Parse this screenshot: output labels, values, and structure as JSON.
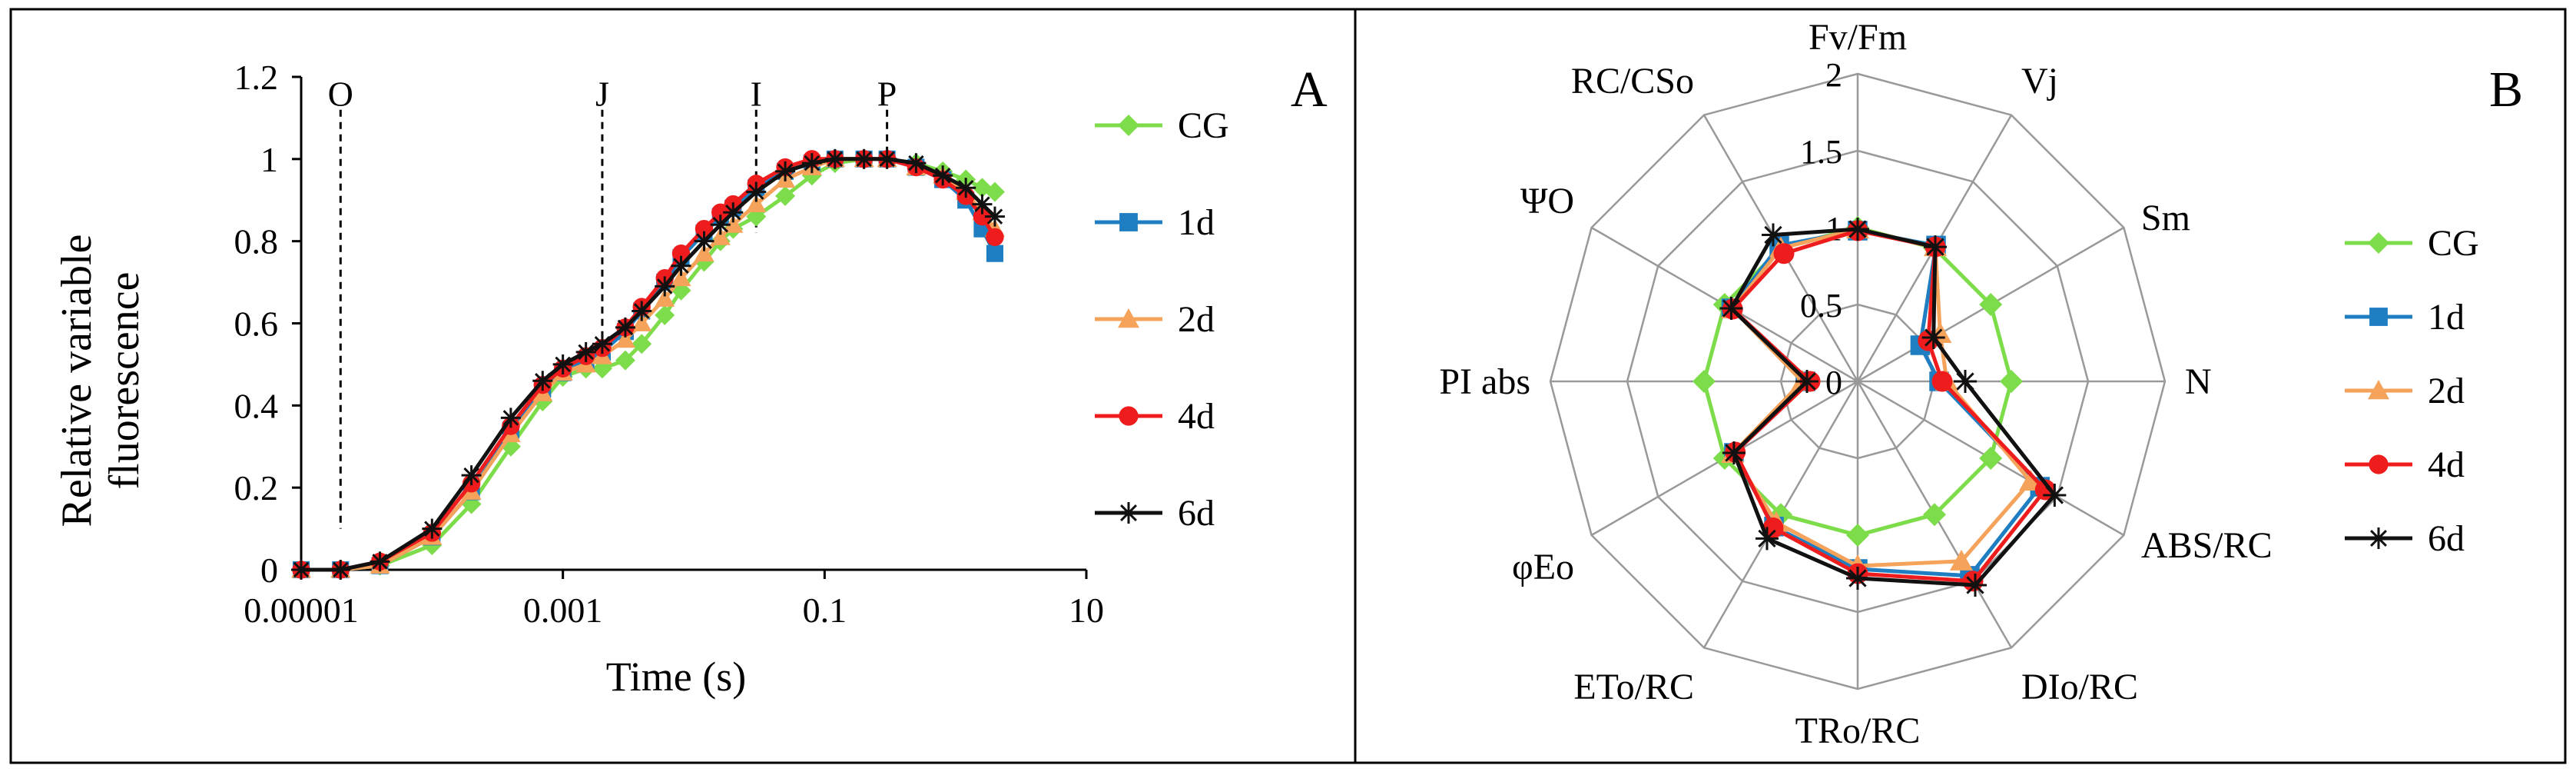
{
  "chart_data": [
    {
      "type": "line",
      "panel_label": "A",
      "xlabel": "Time (s)",
      "ylabel_lines": [
        "Relative variable",
        "fluorescence"
      ],
      "xscale": "log",
      "xlim": [
        1e-05,
        10
      ],
      "ylim": [
        0,
        1.2
      ],
      "x_ticks": [
        1e-05,
        0.001,
        0.1,
        10
      ],
      "x_tick_labels": [
        "0.00001",
        "0.001",
        "0.1",
        "10"
      ],
      "y_ticks": [
        0,
        0.2,
        0.4,
        0.6,
        0.8,
        1,
        1.2
      ],
      "y_tick_labels": [
        "0",
        "0.2",
        "0.4",
        "0.6",
        "0.8",
        "1",
        "1.2"
      ],
      "phase_markers": [
        {
          "label": "O",
          "x": 2e-05
        },
        {
          "label": "J",
          "x": 0.002
        },
        {
          "label": "I",
          "x": 0.03
        },
        {
          "label": "P",
          "x": 0.3
        }
      ],
      "legend_position": "right",
      "series": [
        {
          "name": "CG",
          "color": "#7ddc4a",
          "marker": "diamond",
          "x": [
            1e-05,
            2e-05,
            4e-05,
            0.0001,
            0.0002,
            0.0004,
            0.0007,
            0.001,
            0.0015,
            0.002,
            0.003,
            0.004,
            0.006,
            0.008,
            0.012,
            0.016,
            0.02,
            0.03,
            0.05,
            0.08,
            0.12,
            0.2,
            0.3,
            0.5,
            0.8,
            1.2,
            1.6,
            2
          ],
          "values": [
            0,
            0,
            0.01,
            0.06,
            0.16,
            0.3,
            0.41,
            0.47,
            0.49,
            0.49,
            0.51,
            0.55,
            0.62,
            0.68,
            0.75,
            0.8,
            0.83,
            0.86,
            0.91,
            0.96,
            0.99,
            1.0,
            1.0,
            0.99,
            0.97,
            0.95,
            0.93,
            0.92
          ]
        },
        {
          "name": "1d",
          "color": "#1f7ec2",
          "marker": "square",
          "x": [
            1e-05,
            2e-05,
            4e-05,
            0.0001,
            0.0002,
            0.0004,
            0.0007,
            0.001,
            0.0015,
            0.002,
            0.003,
            0.004,
            0.006,
            0.008,
            0.012,
            0.016,
            0.02,
            0.03,
            0.05,
            0.08,
            0.12,
            0.2,
            0.3,
            0.5,
            0.8,
            1.2,
            1.6,
            2
          ],
          "values": [
            0,
            0,
            0.01,
            0.08,
            0.19,
            0.34,
            0.44,
            0.48,
            0.51,
            0.53,
            0.58,
            0.63,
            0.7,
            0.76,
            0.82,
            0.86,
            0.88,
            0.93,
            0.97,
            0.99,
            1.0,
            1.0,
            1.0,
            0.98,
            0.95,
            0.9,
            0.83,
            0.77
          ]
        },
        {
          "name": "2d",
          "color": "#f5a25a",
          "marker": "triangle",
          "x": [
            1e-05,
            2e-05,
            4e-05,
            0.0001,
            0.0002,
            0.0004,
            0.0007,
            0.001,
            0.0015,
            0.002,
            0.003,
            0.004,
            0.006,
            0.008,
            0.012,
            0.016,
            0.02,
            0.03,
            0.05,
            0.08,
            0.12,
            0.2,
            0.3,
            0.5,
            0.8,
            1.2,
            1.6,
            2
          ],
          "values": [
            0,
            0,
            0.01,
            0.08,
            0.19,
            0.33,
            0.43,
            0.48,
            0.5,
            0.52,
            0.56,
            0.6,
            0.66,
            0.71,
            0.77,
            0.81,
            0.84,
            0.89,
            0.95,
            0.98,
            1.0,
            1.0,
            1.0,
            0.98,
            0.96,
            0.92,
            0.87,
            0.83
          ]
        },
        {
          "name": "4d",
          "color": "#ee1c1c",
          "marker": "circle",
          "x": [
            1e-05,
            2e-05,
            4e-05,
            0.0001,
            0.0002,
            0.0004,
            0.0007,
            0.001,
            0.0015,
            0.002,
            0.003,
            0.004,
            0.006,
            0.008,
            0.012,
            0.016,
            0.02,
            0.03,
            0.05,
            0.08,
            0.12,
            0.2,
            0.3,
            0.5,
            0.8,
            1.2,
            1.6,
            2
          ],
          "values": [
            0,
            0,
            0.02,
            0.09,
            0.21,
            0.35,
            0.45,
            0.49,
            0.52,
            0.54,
            0.59,
            0.64,
            0.71,
            0.77,
            0.83,
            0.87,
            0.89,
            0.94,
            0.98,
            1.0,
            1.0,
            1.0,
            1.0,
            0.98,
            0.95,
            0.91,
            0.86,
            0.81
          ]
        },
        {
          "name": "6d",
          "color": "#111111",
          "marker": "asterisk",
          "x": [
            1e-05,
            2e-05,
            4e-05,
            0.0001,
            0.0002,
            0.0004,
            0.0007,
            0.001,
            0.0015,
            0.002,
            0.003,
            0.004,
            0.006,
            0.008,
            0.012,
            0.016,
            0.02,
            0.03,
            0.05,
            0.08,
            0.12,
            0.2,
            0.3,
            0.5,
            0.8,
            1.2,
            1.6,
            2
          ],
          "values": [
            0,
            0,
            0.02,
            0.1,
            0.23,
            0.37,
            0.46,
            0.5,
            0.53,
            0.55,
            0.59,
            0.63,
            0.69,
            0.74,
            0.8,
            0.84,
            0.87,
            0.92,
            0.97,
            0.99,
            1.0,
            1.0,
            1.0,
            0.99,
            0.96,
            0.93,
            0.89,
            0.86
          ]
        }
      ]
    },
    {
      "type": "radar",
      "panel_label": "B",
      "axes": [
        "Fv/Fm",
        "Vj",
        "Sm",
        "N",
        "ABS/RC",
        "DIo/RC",
        "TRo/RC",
        "ETo/RC",
        "φEo",
        "PI abs",
        "ΨO",
        "RC/CSo"
      ],
      "rlim": [
        0,
        2
      ],
      "r_ticks": [
        0,
        0.5,
        1,
        1.5,
        2
      ],
      "r_tick_labels": [
        "0",
        "0.5",
        "1",
        "1.5",
        "2"
      ],
      "legend_position": "right",
      "series": [
        {
          "name": "CG",
          "color": "#7ddc4a",
          "marker": "diamond",
          "values": [
            1,
            1,
            1,
            1,
            1,
            1,
            1,
            1,
            1,
            1,
            1,
            1
          ]
        },
        {
          "name": "1d",
          "color": "#1f7ec2",
          "marker": "square",
          "values": [
            0.98,
            1.02,
            0.47,
            0.53,
            1.37,
            1.46,
            1.22,
            1.09,
            0.93,
            0.34,
            0.95,
            1.02
          ]
        },
        {
          "name": "2d",
          "color": "#f5a25a",
          "marker": "triangle",
          "values": [
            0.99,
            1.01,
            0.62,
            0.58,
            1.3,
            1.35,
            1.2,
            1.06,
            0.94,
            0.36,
            0.94,
            1.0
          ]
        },
        {
          "name": "4d",
          "color": "#ee1c1c",
          "marker": "circle",
          "values": [
            0.98,
            1.01,
            0.53,
            0.55,
            1.41,
            1.5,
            1.25,
            1.1,
            0.92,
            0.31,
            0.94,
            0.96
          ]
        },
        {
          "name": "6d",
          "color": "#111111",
          "marker": "asterisk",
          "values": [
            0.99,
            1.01,
            0.57,
            0.7,
            1.48,
            1.53,
            1.28,
            1.18,
            0.93,
            0.33,
            0.95,
            1.1
          ]
        }
      ]
    }
  ]
}
